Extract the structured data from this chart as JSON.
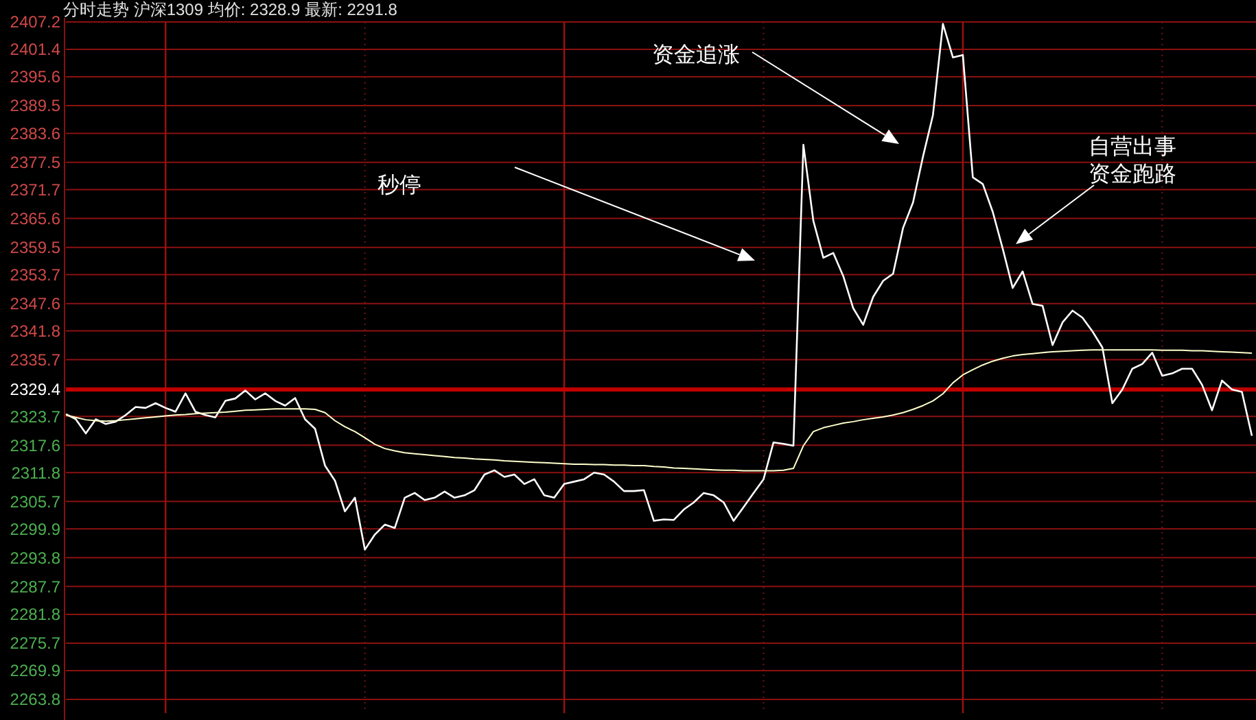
{
  "chart_data": {
    "type": "line",
    "title": "分时走势  沪深1309 均价: 2328.9 最新: 2291.8",
    "categories": [
      null,
      null,
      null,
      null,
      null,
      null,
      null,
      null,
      null,
      null,
      null,
      null,
      null,
      null,
      null,
      null,
      null,
      null,
      null,
      null,
      null,
      null,
      null,
      null,
      null,
      null,
      null,
      null,
      null,
      null,
      null,
      null,
      null,
      null,
      null,
      null,
      null,
      null,
      null,
      null,
      null,
      null,
      null,
      null,
      null,
      null,
      null,
      null,
      null,
      null,
      null,
      null,
      null,
      null,
      null,
      null,
      null,
      null,
      null,
      null,
      null,
      null,
      null,
      null,
      null,
      null,
      null,
      null,
      null,
      null,
      null,
      null,
      null,
      null,
      null,
      null,
      null,
      null,
      null,
      null,
      null,
      null,
      null,
      null,
      null,
      null,
      null,
      null,
      null,
      null,
      null,
      null,
      null,
      null,
      null,
      null,
      null,
      null,
      null,
      null,
      null,
      null,
      null,
      null,
      null,
      null,
      null,
      null,
      null,
      null,
      null,
      null,
      null,
      null,
      null,
      null,
      null,
      null,
      null,
      null
    ],
    "series": [
      {
        "color": "#ffffff",
        "values": [
          2324.2,
          2323.1,
          2320.1,
          2323.1,
          2322.1,
          2322.6,
          2324.0,
          2325.7,
          2325.5,
          2326.5,
          2325.5,
          2324.7,
          2328.6,
          2324.7,
          2324.0,
          2323.5,
          2327.0,
          2327.5,
          2329.2,
          2327.3,
          2328.6,
          2327.0,
          2326.0,
          2327.6,
          2323.1,
          2321.1,
          2313.3,
          2310.1,
          2303.6,
          2306.5,
          2295.5,
          2298.7,
          2300.8,
          2300.1,
          2306.5,
          2307.5,
          2306.0,
          2306.5,
          2307.8,
          2306.5,
          2307.0,
          2308.1,
          2311.4,
          2312.3,
          2310.9,
          2311.4,
          2309.4,
          2310.4,
          2307.0,
          2306.5,
          2309.4,
          2309.9,
          2310.4,
          2311.8,
          2311.4,
          2309.9,
          2307.9,
          2307.9,
          2308.1,
          2301.6,
          2301.9,
          2301.8,
          2304.0,
          2305.5,
          2307.5,
          2307.0,
          2305.5,
          2301.6,
          2304.5,
          2307.5,
          2310.4,
          2318.2,
          2317.9,
          2317.5,
          2381.2,
          2365.1,
          2357.3,
          2358.3,
          2353.4,
          2346.6,
          2343.1,
          2349.0,
          2352.4,
          2353.9,
          2363.6,
          2369.0,
          2378.7,
          2387.5,
          2406.8,
          2399.7,
          2400.2,
          2374.3,
          2372.9,
          2367.0,
          2359.2,
          2350.9,
          2354.4,
          2347.5,
          2347.1,
          2338.8,
          2343.6,
          2346.1,
          2344.6,
          2341.7,
          2338.3,
          2326.5,
          2329.4,
          2333.8,
          2334.8,
          2337.2,
          2332.3,
          2332.8,
          2333.8,
          2333.8,
          2330.4,
          2325.0,
          2331.3,
          2329.4,
          2328.9,
          2319.6
        ]
      },
      {
        "color": "#ffffcc",
        "values": [
          2324.0,
          2323.5,
          2323.0,
          2322.8,
          2322.7,
          2322.8,
          2323.0,
          2323.2,
          2323.4,
          2323.6,
          2323.8,
          2324.0,
          2324.1,
          2324.3,
          2324.4,
          2324.5,
          2324.6,
          2324.8,
          2325.0,
          2325.1,
          2325.2,
          2325.3,
          2325.3,
          2325.3,
          2325.3,
          2325.2,
          2324.5,
          2322.8,
          2321.5,
          2320.5,
          2319.2,
          2317.8,
          2316.9,
          2316.4,
          2316.0,
          2315.8,
          2315.6,
          2315.4,
          2315.2,
          2315.0,
          2314.9,
          2314.7,
          2314.6,
          2314.5,
          2314.3,
          2314.2,
          2314.1,
          2314.0,
          2313.9,
          2313.8,
          2313.7,
          2313.6,
          2313.6,
          2313.5,
          2313.5,
          2313.4,
          2313.4,
          2313.3,
          2313.3,
          2313.1,
          2313.0,
          2312.8,
          2312.7,
          2312.6,
          2312.5,
          2312.4,
          2312.3,
          2312.3,
          2312.2,
          2312.2,
          2312.2,
          2312.2,
          2312.3,
          2312.7,
          2317.5,
          2320.5,
          2321.3,
          2321.8,
          2322.3,
          2322.6,
          2323.0,
          2323.3,
          2323.6,
          2324.0,
          2324.5,
          2325.2,
          2326.0,
          2327.0,
          2328.5,
          2330.8,
          2332.5,
          2333.6,
          2334.6,
          2335.4,
          2336.0,
          2336.5,
          2336.8,
          2337.0,
          2337.2,
          2337.4,
          2337.5,
          2337.6,
          2337.7,
          2337.8,
          2337.8,
          2337.8,
          2337.8,
          2337.8,
          2337.8,
          2337.8,
          2337.7,
          2337.7,
          2337.7,
          2337.6,
          2337.6,
          2337.5,
          2337.4,
          2337.3,
          2337.2,
          2337.1
        ]
      }
    ],
    "ylim": [
      2263.8,
      2407.2
    ],
    "yticks": [
      2263.8,
      2269.9,
      2275.7,
      2281.8,
      2287.7,
      2293.8,
      2299.9,
      2305.7,
      2311.8,
      2317.6,
      2323.7,
      2329.4,
      2335.7,
      2341.8,
      2347.6,
      2353.7,
      2359.5,
      2365.6,
      2371.7,
      2377.5,
      2383.6,
      2389.5,
      2395.6,
      2401.4,
      2407.2
    ],
    "grid": true,
    "marker": "none",
    "line_style": "solid",
    "ref_lines": [
      {
        "axis": "y",
        "value": 2329.4,
        "color": "#c00000"
      }
    ],
    "annotations": [
      "秒停",
      "资金追涨",
      "自营出事",
      "资金跑路"
    ]
  }
}
